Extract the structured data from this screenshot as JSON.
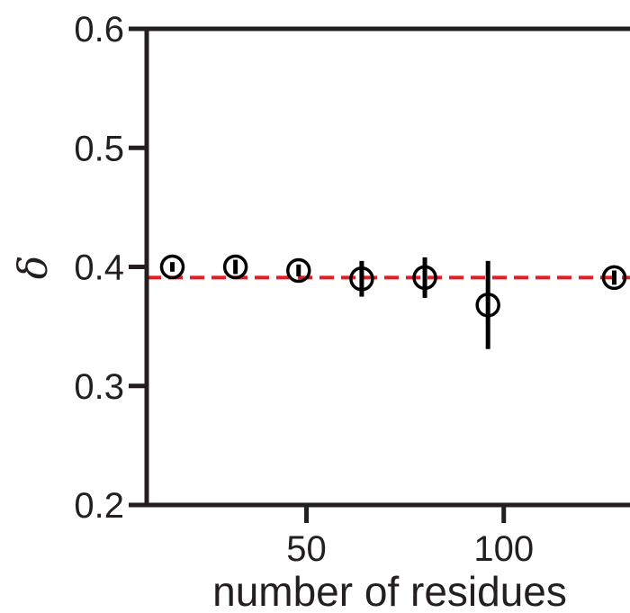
{
  "chart_data": {
    "type": "scatter",
    "title": "",
    "xlabel": "number of residues",
    "ylabel": "δ",
    "xlim": [
      9.5,
      132
    ],
    "ylim": [
      0.2,
      0.6
    ],
    "xticks": [
      50,
      100
    ],
    "xtick_labels": [
      "50",
      "100"
    ],
    "yticks": [
      0.2,
      0.3,
      0.4,
      0.5,
      0.6
    ],
    "ytick_labels": [
      "0.2",
      "0.3",
      "0.4",
      "0.5",
      "0.6"
    ],
    "grid": false,
    "reference_line": {
      "y": 0.391,
      "style": "dashed",
      "color": "#e8191f"
    },
    "series": [
      {
        "marker": "open-circle",
        "color": "#000000",
        "x": [
          16,
          32,
          48,
          64,
          80,
          96,
          128
        ],
        "y": [
          0.4,
          0.4,
          0.397,
          0.39,
          0.391,
          0.368,
          0.391
        ],
        "error": [
          0.004,
          0.006,
          0.005,
          0.015,
          0.017,
          0.037,
          0.006
        ]
      }
    ]
  }
}
